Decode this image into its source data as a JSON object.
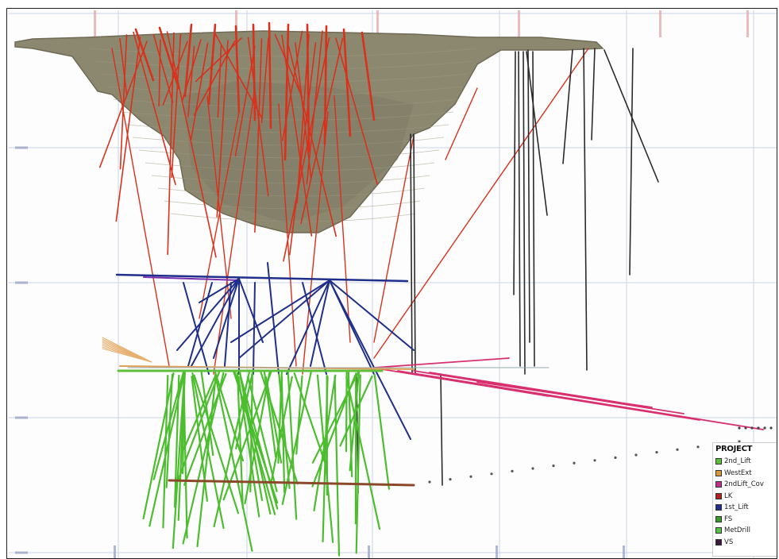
{
  "legend": {
    "title": "PROJECT",
    "items": [
      {
        "label": "2nd_Lift",
        "color": "#5fbf3a"
      },
      {
        "label": "WestExt",
        "color": "#d49a3a"
      },
      {
        "label": "2ndLift_Cov",
        "color": "#c0308a"
      },
      {
        "label": "LK",
        "color": "#b02020"
      },
      {
        "label": "1st_Lift",
        "color": "#1f2f8a"
      },
      {
        "label": "FS",
        "color": "#3a9a2a"
      },
      {
        "label": "MetDrill",
        "color": "#58c048"
      },
      {
        "label": "VS",
        "color": "#3a1a3a"
      }
    ]
  },
  "colors": {
    "pit_fill": "#8c8870",
    "pit_edge": "#6e6a55",
    "lk": "#d8311c",
    "first_lift": "#1f2f8a",
    "fs": "#4cbd2e",
    "second_lift_cov": "#d8306e",
    "west_ext": "#e0a05a",
    "vs": "#2a2a2a",
    "grid": "#c9d3e6"
  }
}
